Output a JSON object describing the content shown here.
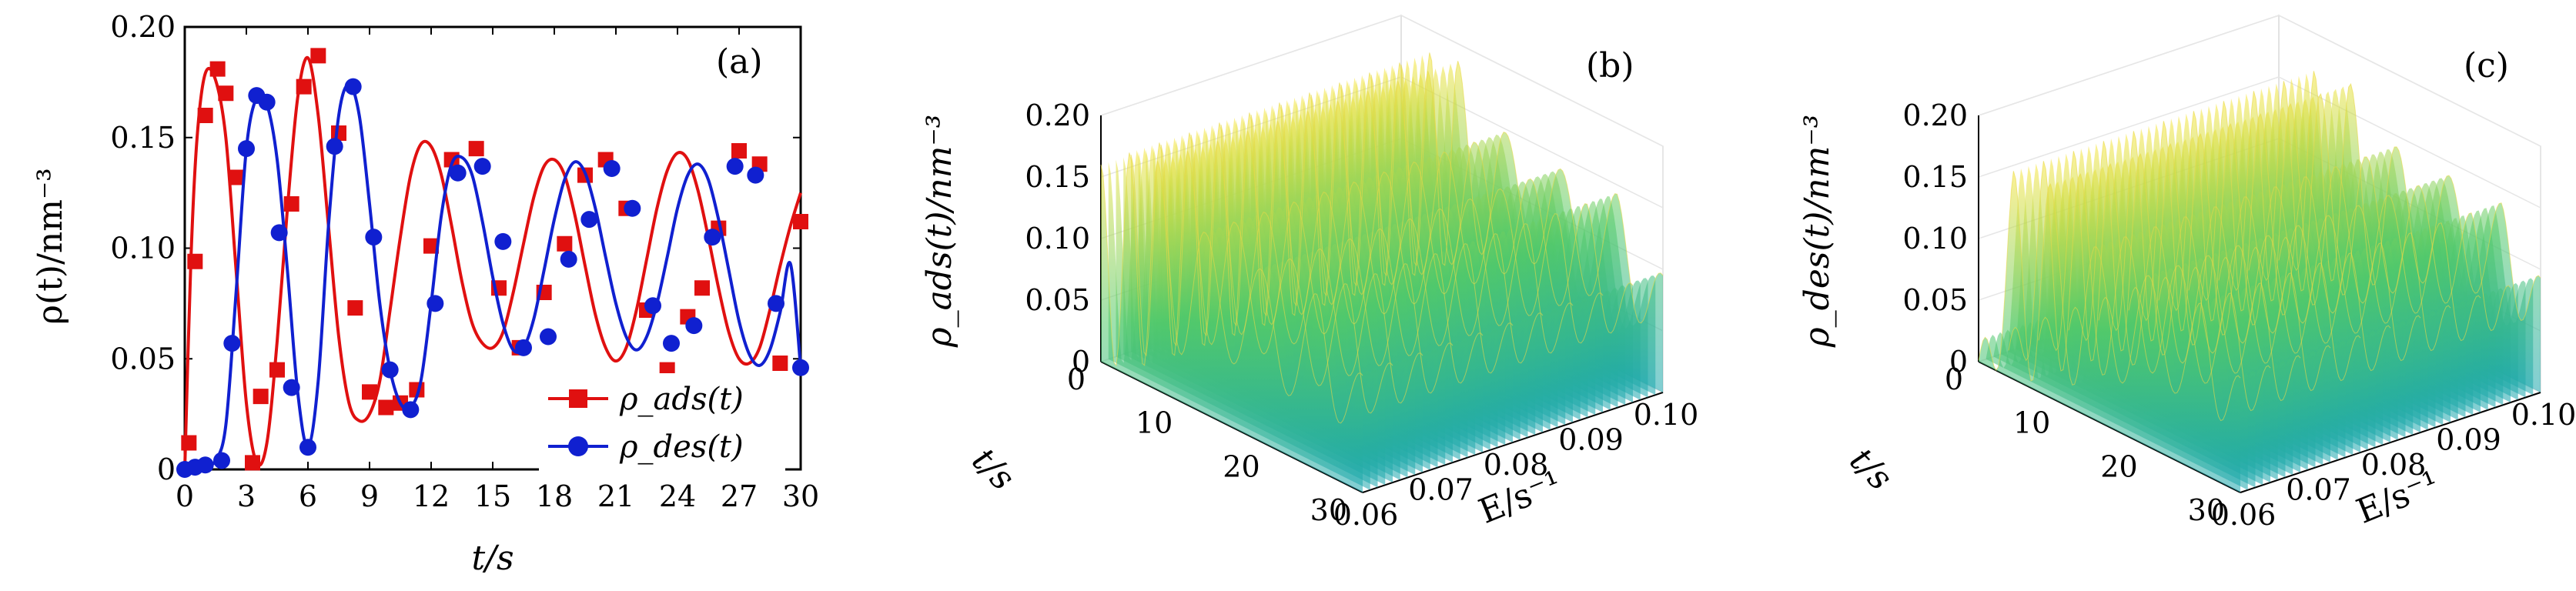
{
  "panels": {
    "a": {
      "label": "(a)",
      "xlabel": "t/s",
      "ylabel": "ρ(t)/nm⁻³"
    },
    "b": {
      "label": "(b)",
      "zlabel": "ρ_ads(t)/nm⁻³",
      "tlabel": "t/s",
      "elabel": "E/s⁻¹"
    },
    "c": {
      "label": "(c)",
      "zlabel": "ρ_des(t)/nm⁻³",
      "tlabel": "t/s",
      "elabel": "E/s⁻¹"
    }
  },
  "colors": {
    "ads": "#e01010",
    "des": "#1020d0",
    "surface_low": "#3b2aa8",
    "surface_mid": "#26b59a",
    "surface_high": "#f6e63a"
  },
  "chart_data": [
    {
      "type": "line",
      "panel": "a",
      "xlabel": "t/s",
      "ylabel": "ρ(t)/nm⁻³",
      "xlim": [
        0,
        30
      ],
      "ylim": [
        0,
        0.2
      ],
      "x_ticks": [
        "0",
        "3",
        "6",
        "9",
        "12",
        "15",
        "18",
        "21",
        "24",
        "27",
        "30"
      ],
      "y_ticks": [
        "0",
        "0.05",
        "0.10",
        "0.15",
        "0.20"
      ],
      "legend_position": "bottom-right",
      "series": [
        {
          "name": "ρ_ads(t)",
          "marker": "square",
          "color": "#e01010",
          "x": [
            0,
            0.3,
            0.6,
            1.0,
            1.5,
            2.0,
            2.5,
            3.0,
            3.5,
            4.0,
            4.5,
            5.0,
            5.5,
            6.0,
            6.5,
            7.0,
            7.5,
            8.0,
            8.5,
            9.0,
            9.5,
            10.0,
            10.5,
            11.0,
            11.5,
            12.0,
            12.5,
            13.0,
            13.5,
            14.0,
            14.5,
            15.0,
            15.5,
            16.0,
            16.5,
            17.0,
            17.5,
            18.0,
            18.5,
            19.0,
            19.5,
            20.0,
            20.5,
            21.0,
            21.5,
            22.0,
            22.5,
            23.0,
            23.5,
            24.0,
            24.5,
            25.0,
            25.5,
            26.0,
            26.5,
            27.0,
            27.5,
            28.0,
            28.5,
            29.0,
            29.5,
            30.0
          ],
          "y": [
            0.0,
            0.095,
            0.15,
            0.179,
            0.176,
            0.15,
            0.09,
            0.03,
            0.003,
            0.012,
            0.058,
            0.118,
            0.168,
            0.186,
            0.16,
            0.11,
            0.06,
            0.03,
            0.022,
            0.025,
            0.04,
            0.072,
            0.105,
            0.133,
            0.147,
            0.146,
            0.133,
            0.11,
            0.085,
            0.066,
            0.057,
            0.055,
            0.062,
            0.08,
            0.102,
            0.123,
            0.137,
            0.14,
            0.133,
            0.115,
            0.092,
            0.07,
            0.055,
            0.049,
            0.055,
            0.072,
            0.095,
            0.118,
            0.135,
            0.143,
            0.14,
            0.126,
            0.105,
            0.082,
            0.062,
            0.05,
            0.048,
            0.055,
            0.072,
            0.092,
            0.11,
            0.125
          ],
          "markers_x": [
            0.2,
            0.5,
            1.0,
            1.6,
            2.0,
            2.5,
            3.3,
            3.7,
            4.5,
            5.2,
            5.8,
            6.5,
            7.5,
            8.3,
            9.0,
            9.8,
            10.5,
            11.3,
            12.0,
            13.0,
            14.2,
            15.3,
            16.3,
            17.5,
            18.5,
            19.5,
            20.5,
            21.5,
            22.5,
            23.5,
            24.5,
            25.2,
            26.0,
            27.0,
            28.0,
            29.0,
            30.0
          ],
          "markers_y": [
            0.012,
            0.094,
            0.16,
            0.181,
            0.17,
            0.132,
            0.003,
            0.033,
            0.045,
            0.12,
            0.173,
            0.187,
            0.152,
            0.073,
            0.035,
            0.028,
            0.03,
            0.036,
            0.101,
            0.14,
            0.145,
            0.082,
            0.055,
            0.08,
            0.102,
            0.133,
            0.14,
            0.118,
            0.072,
            0.045,
            0.069,
            0.082,
            0.109,
            0.144,
            0.138,
            0.048,
            0.112
          ]
        },
        {
          "name": "ρ_des(t)",
          "marker": "circle",
          "color": "#1020d0",
          "x": [
            0,
            0.5,
            1.0,
            1.5,
            2.0,
            2.5,
            3.0,
            3.5,
            4.0,
            4.5,
            5.0,
            5.5,
            6.0,
            6.5,
            7.0,
            7.5,
            8.0,
            8.5,
            9.0,
            9.5,
            10.0,
            10.5,
            11.0,
            11.5,
            12.0,
            12.5,
            13.0,
            13.5,
            14.0,
            14.5,
            15.0,
            15.5,
            16.0,
            16.5,
            17.0,
            17.5,
            18.0,
            18.5,
            19.0,
            19.5,
            20.0,
            20.5,
            21.0,
            21.5,
            22.0,
            22.5,
            23.0,
            23.5,
            24.0,
            24.5,
            25.0,
            25.5,
            26.0,
            26.5,
            27.0,
            27.5,
            28.0,
            28.5,
            29.0,
            29.5,
            30.0
          ],
          "y": [
            0.0,
            0.001,
            0.002,
            0.004,
            0.02,
            0.08,
            0.145,
            0.168,
            0.165,
            0.14,
            0.09,
            0.035,
            0.01,
            0.04,
            0.11,
            0.16,
            0.174,
            0.16,
            0.12,
            0.075,
            0.045,
            0.03,
            0.028,
            0.04,
            0.075,
            0.115,
            0.138,
            0.141,
            0.133,
            0.112,
            0.087,
            0.066,
            0.054,
            0.055,
            0.068,
            0.09,
            0.113,
            0.131,
            0.139,
            0.134,
            0.118,
            0.096,
            0.075,
            0.06,
            0.054,
            0.06,
            0.075,
            0.096,
            0.118,
            0.133,
            0.138,
            0.131,
            0.113,
            0.09,
            0.067,
            0.052,
            0.047,
            0.054,
            0.071,
            0.093,
            0.046
          ],
          "markers_x": [
            0.0,
            0.5,
            1.0,
            1.8,
            2.3,
            3.0,
            3.5,
            4.0,
            4.6,
            5.2,
            6.0,
            7.3,
            8.2,
            9.2,
            10.0,
            11.0,
            12.2,
            13.3,
            14.5,
            15.5,
            16.5,
            17.7,
            18.7,
            19.7,
            20.8,
            21.8,
            22.8,
            23.7,
            24.8,
            25.7,
            26.8,
            27.8,
            28.8,
            30.0
          ],
          "markers_y": [
            0.0,
            0.001,
            0.002,
            0.004,
            0.057,
            0.145,
            0.169,
            0.166,
            0.107,
            0.037,
            0.01,
            0.146,
            0.173,
            0.105,
            0.045,
            0.027,
            0.075,
            0.134,
            0.137,
            0.103,
            0.055,
            0.06,
            0.095,
            0.113,
            0.136,
            0.118,
            0.074,
            0.057,
            0.065,
            0.105,
            0.137,
            0.133,
            0.075,
            0.046
          ]
        }
      ]
    },
    {
      "type": "surface",
      "panel": "b",
      "zlabel": "ρ_ads(t)/nm⁻³",
      "tlabel": "t/s",
      "elabel": "E/s⁻¹",
      "z_ticks": [
        "0",
        "0.05",
        "0.10",
        "0.15",
        "0.20"
      ],
      "t_ticks": [
        "0",
        "10",
        "20",
        "30"
      ],
      "e_ticks": [
        "0.06",
        "0.07",
        "0.08",
        "0.09",
        "0.10"
      ],
      "zlim": [
        0,
        0.2
      ],
      "tlim": [
        0,
        30
      ],
      "elim": [
        0.06,
        0.1
      ],
      "ridge_t": [
        0,
        3.3,
        6.5,
        12.0,
        18.3,
        24.7,
        30.0
      ],
      "ridge_peak": [
        0.16,
        0.182,
        0.186,
        0.147,
        0.14,
        0.143,
        0.095
      ],
      "ridge_trough": [
        0.0,
        0.003,
        0.022,
        0.055,
        0.049,
        0.048,
        0.046
      ]
    },
    {
      "type": "surface",
      "panel": "c",
      "zlabel": "ρ_des(t)/nm⁻³",
      "tlabel": "t/s",
      "elabel": "E/s⁻¹",
      "z_ticks": [
        "0",
        "0.05",
        "0.10",
        "0.15",
        "0.20"
      ],
      "t_ticks": [
        "0",
        "10",
        "20",
        "30"
      ],
      "e_ticks": [
        "0.06",
        "0.07",
        "0.08",
        "0.09",
        "0.10"
      ],
      "zlim": [
        0,
        0.2
      ],
      "tlim": [
        0,
        30
      ],
      "elim": [
        0.06,
        0.1
      ],
      "ridge_t": [
        0,
        4.0,
        8.2,
        13.5,
        19.5,
        25.5,
        30.0
      ],
      "ridge_peak": [
        0.001,
        0.169,
        0.174,
        0.141,
        0.139,
        0.138,
        0.093
      ],
      "ridge_trough": [
        0.0,
        0.0,
        0.01,
        0.028,
        0.054,
        0.054,
        0.047
      ]
    }
  ]
}
